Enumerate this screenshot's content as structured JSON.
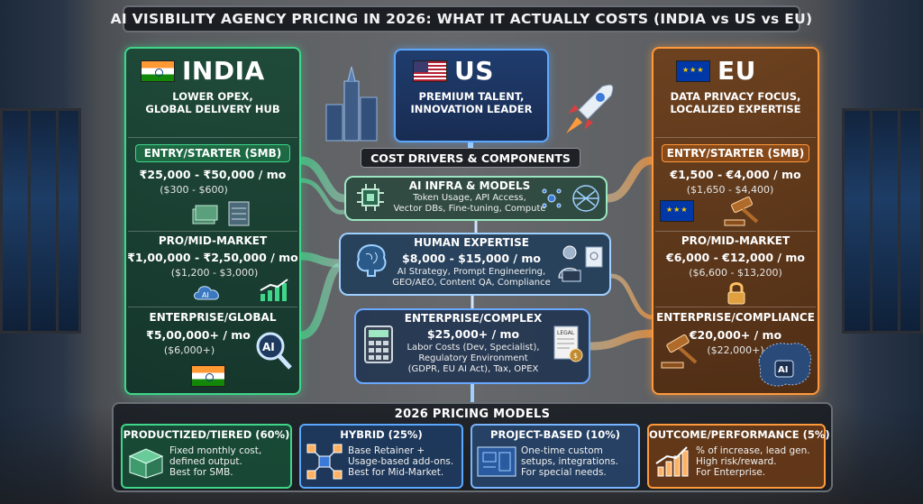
{
  "title": "AI VISIBILITY AGENCY PRICING IN 2026: WHAT IT ACTUALLY COSTS (INDIA vs US vs EU)",
  "colors": {
    "india": "#3fd68a",
    "us": "#5da8ff",
    "eu": "#ff9a3c"
  },
  "india": {
    "name": "INDIA",
    "tagline": [
      "LOWER OPEX,",
      "GLOBAL DELIVERY HUB"
    ],
    "tiers": [
      {
        "label": "ENTRY/STARTER (SMB)",
        "price": "₹25,000 - ₹50,000 / mo",
        "usd": "($300 - $600)"
      },
      {
        "label": "PRO/MID-MARKET",
        "price": "₹1,00,000 - ₹2,50,000 / mo",
        "usd": "($1,200 - $3,000)"
      },
      {
        "label": "ENTERPRISE/GLOBAL",
        "price": "₹5,00,000+ / mo",
        "usd": "($6,000+)"
      }
    ],
    "icons": [
      "server-stack-icon",
      "cloud-ai-icon",
      "growth-chart-icon",
      "ai-magnifier-icon",
      "india-flag-icon"
    ]
  },
  "us": {
    "name": "US",
    "tagline": [
      "PREMIUM TALENT,",
      "INNOVATION LEADER"
    ],
    "icons": [
      "skyscraper-icon",
      "rocket-icon"
    ]
  },
  "eu": {
    "name": "EU",
    "tagline": [
      "DATA PRIVACY FOCUS,",
      "LOCALIZED EXPERTISE"
    ],
    "tiers": [
      {
        "label": "ENTRY/STARTER (SMB)",
        "price": "€1,500 - €4,000 / mo",
        "usd": "($1,650 - $4,400)"
      },
      {
        "label": "PRO/MID-MARKET",
        "price": "€6,000 - €12,000 / mo",
        "usd": "($6,600 - $13,200)"
      },
      {
        "label": "ENTERPRISE/COMPLIANCE",
        "price": "€20,000+ / mo",
        "usd": "($22,000+)"
      }
    ],
    "icons": [
      "eu-flag-icon",
      "gavel-icon",
      "padlock-icon",
      "europe-map-icon"
    ]
  },
  "cost_drivers": {
    "title": "COST DRIVERS & COMPONENTS",
    "items": [
      {
        "title": "AI INFRA & MODELS",
        "desc": [
          "Token Usage, API Access,",
          "Vector DBs, Fine-tuning, Compute"
        ],
        "icon": "chip-icon"
      },
      {
        "title": "HUMAN EXPERTISE",
        "price": "$8,000 - $15,000 / mo",
        "desc": [
          "AI Strategy, Prompt Engineering,",
          "GEO/AEO, Content QA, Compliance"
        ],
        "icon": "brain-icon"
      },
      {
        "title": "ENTERPRISE/COMPLEX",
        "price": "$25,000+ / mo",
        "desc": [
          "Labor Costs (Dev, Specialist),",
          "Regulatory Environment",
          "(GDPR, EU AI Act), Tax, OPEX"
        ],
        "icon": "calculator-icon",
        "doc_label": "LEGAL"
      }
    ]
  },
  "pricing_models": {
    "title": "2026 PRICING MODELS",
    "items": [
      {
        "title": "PRODUCTIZED/TIERED (60%)",
        "share": 60,
        "lines": [
          "Fixed monthly cost,",
          "defined output.",
          "Best for SMB."
        ],
        "icon": "box-icon"
      },
      {
        "title": "HYBRID (25%)",
        "share": 25,
        "lines": [
          "Base Retainer +",
          "Usage-based add-ons.",
          "Best for Mid-Market."
        ],
        "icon": "network-icon"
      },
      {
        "title": "PROJECT-BASED (10%)",
        "share": 10,
        "lines": [
          "One-time custom",
          "setups, integrations.",
          "For special needs."
        ],
        "icon": "blueprint-icon"
      },
      {
        "title": "OUTCOME/PERFORMANCE (5%)",
        "share": 5,
        "lines": [
          "% of increase, lead gen.",
          "High risk/reward.",
          "For Enterprise."
        ],
        "icon": "bar-growth-icon"
      }
    ]
  }
}
